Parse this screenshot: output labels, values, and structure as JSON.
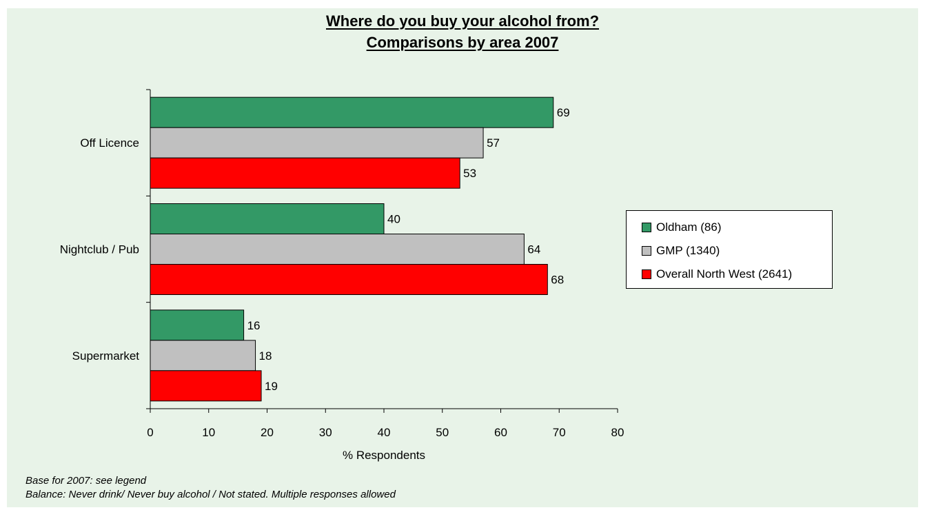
{
  "chart_data": {
    "type": "bar",
    "orientation": "horizontal",
    "title": "Where do you buy your alcohol from?",
    "subtitle": "Comparisons by area 2007",
    "categories": [
      "Off Licence",
      "Nightclub / Pub",
      "Supermarket"
    ],
    "series": [
      {
        "name": "Oldham (86)",
        "color": "#339966",
        "values": [
          69,
          40,
          16
        ]
      },
      {
        "name": "GMP (1340)",
        "color": "#c0c0c0",
        "values": [
          57,
          64,
          18
        ]
      },
      {
        "name": "Overall North West (2641)",
        "color": "#ff0000",
        "values": [
          53,
          68,
          19
        ]
      }
    ],
    "xlabel": "% Respondents",
    "xlim": [
      0,
      80
    ],
    "xticks": [
      0,
      10,
      20,
      30,
      40,
      50,
      60,
      70,
      80
    ],
    "grid": false,
    "legend_position": "right"
  },
  "footnotes": [
    "Base for 2007: see legend",
    "Balance: Never drink/ Never buy alcohol / Not stated. Multiple responses allowed"
  ],
  "colors": {
    "background": "#e8f3e8"
  }
}
